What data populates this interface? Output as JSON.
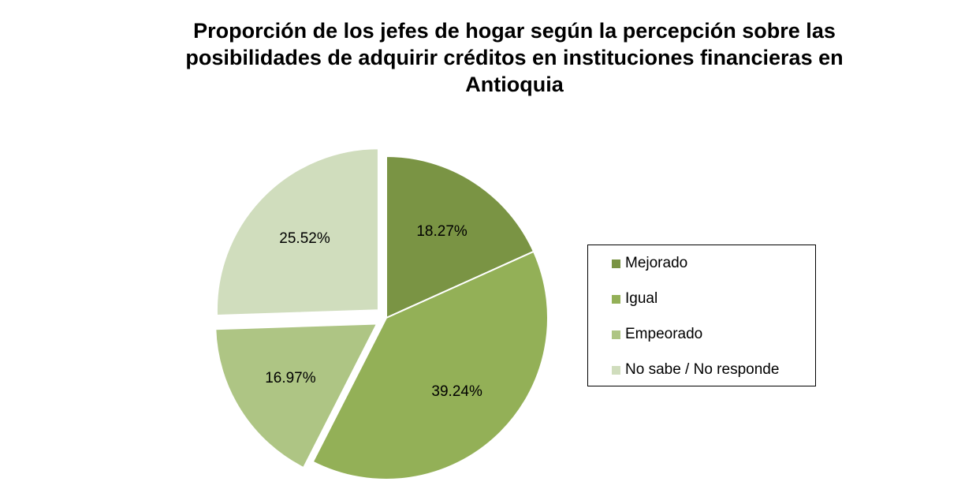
{
  "chart_data": {
    "type": "pie",
    "title": "Proporción de los jefes de hogar según la percepción sobre las posibilidades de adquirir créditos en instituciones financieras en Antioquia",
    "slices": [
      {
        "name": "Mejorado",
        "value": 18.27,
        "label": "18.27%",
        "color": "#7a9444"
      },
      {
        "name": "Igual",
        "value": 39.24,
        "label": "39.24%",
        "color": "#93b057"
      },
      {
        "name": "Empeorado",
        "value": 16.97,
        "label": "16.97%",
        "color": "#aec584"
      },
      {
        "name": "No sabe / No responde",
        "value": 25.52,
        "label": "25.52%",
        "color": "#d0ddbd"
      }
    ],
    "exploded": [
      "Empeorado",
      "No sabe / No responde"
    ],
    "legend_position": "right"
  }
}
